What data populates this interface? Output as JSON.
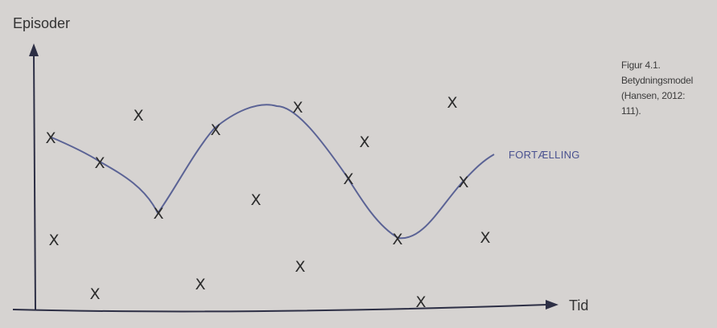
{
  "diagram": {
    "y_axis_label": "Episoder",
    "x_axis_label": "Tid",
    "curve_label": "FORTÆLLING",
    "marker_symbol": "X",
    "caption_lines": [
      "Figur 4.1.",
      "Betydningsmodel",
      "(Hansen, 2012:",
      "111)."
    ],
    "colors": {
      "background": "#d6d3d1",
      "axis": "#2d2f45",
      "curve": "#5b6395",
      "curve_label": "#4a5290",
      "marker": "#2b2b2b",
      "text": "#333333"
    }
  }
}
